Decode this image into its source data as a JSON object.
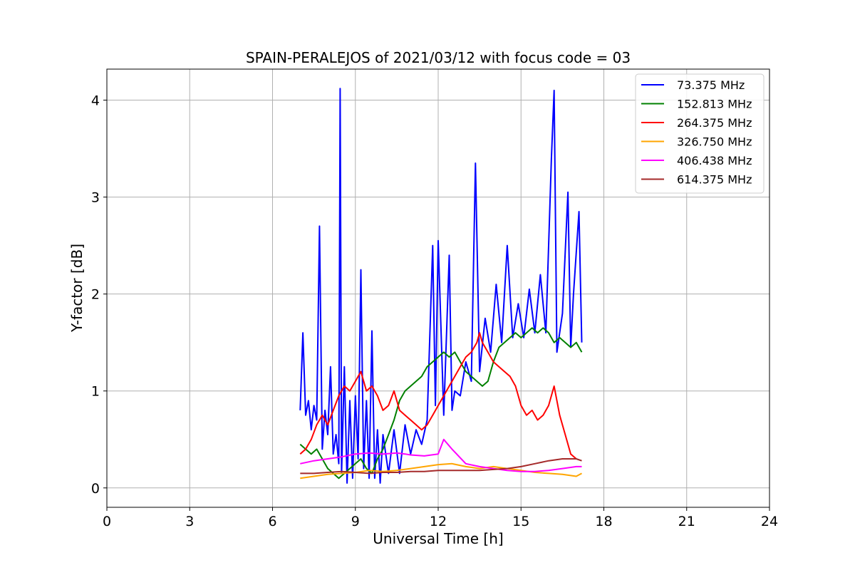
{
  "chart_data": {
    "type": "line",
    "title": "SPAIN-PERALEJOS of 2021/03/12 with focus code = 03",
    "xlabel": "Universal Time [h]",
    "ylabel": "Y-factor [dB]",
    "xlim": [
      0,
      24
    ],
    "ylim": [
      -0.2,
      4.32
    ],
    "xticks": [
      0,
      3,
      6,
      9,
      12,
      15,
      18,
      21,
      24
    ],
    "yticks": [
      0,
      1,
      2,
      3,
      4
    ],
    "grid": true,
    "legend_position": "top-right",
    "series": [
      {
        "name": " 73.375 MHz",
        "color": "#0000ff",
        "x": [
          7.0,
          7.1,
          7.2,
          7.3,
          7.4,
          7.5,
          7.6,
          7.7,
          7.8,
          7.9,
          8.0,
          8.1,
          8.2,
          8.3,
          8.4,
          8.45,
          8.5,
          8.6,
          8.7,
          8.8,
          8.9,
          9.0,
          9.1,
          9.2,
          9.3,
          9.4,
          9.5,
          9.6,
          9.7,
          9.8,
          9.9,
          10.0,
          10.2,
          10.4,
          10.6,
          10.8,
          11.0,
          11.2,
          11.4,
          11.6,
          11.8,
          11.9,
          12.0,
          12.2,
          12.4,
          12.5,
          12.6,
          12.8,
          13.0,
          13.2,
          13.35,
          13.5,
          13.7,
          13.9,
          14.1,
          14.3,
          14.5,
          14.7,
          14.9,
          15.1,
          15.3,
          15.5,
          15.7,
          15.9,
          16.1,
          16.2,
          16.3,
          16.5,
          16.7,
          16.8,
          16.9,
          17.1,
          17.2
        ],
        "y": [
          0.8,
          1.6,
          0.75,
          0.9,
          0.6,
          0.85,
          0.7,
          2.7,
          0.4,
          0.8,
          0.55,
          1.25,
          0.35,
          0.55,
          0.25,
          4.12,
          0.15,
          1.25,
          0.05,
          0.9,
          0.1,
          0.95,
          0.3,
          2.25,
          0.2,
          0.9,
          0.1,
          1.62,
          0.1,
          0.6,
          0.05,
          0.55,
          0.15,
          0.6,
          0.15,
          0.65,
          0.35,
          0.6,
          0.45,
          0.7,
          2.5,
          0.85,
          2.55,
          0.75,
          2.4,
          0.8,
          1.0,
          0.95,
          1.3,
          1.1,
          3.35,
          1.2,
          1.75,
          1.4,
          2.1,
          1.5,
          2.5,
          1.55,
          1.9,
          1.55,
          2.05,
          1.6,
          2.2,
          1.6,
          3.4,
          4.1,
          1.4,
          1.8,
          3.05,
          1.45,
          2.0,
          2.85,
          1.5
        ]
      },
      {
        "name": "152.813 MHz",
        "color": "#008000",
        "x": [
          7.0,
          7.2,
          7.4,
          7.6,
          7.8,
          8.0,
          8.2,
          8.4,
          8.6,
          8.8,
          9.0,
          9.2,
          9.4,
          9.6,
          9.8,
          10.0,
          10.2,
          10.4,
          10.6,
          10.8,
          11.0,
          11.2,
          11.4,
          11.6,
          11.8,
          12.0,
          12.2,
          12.4,
          12.6,
          12.8,
          13.0,
          13.2,
          13.4,
          13.6,
          13.8,
          14.0,
          14.2,
          14.4,
          14.6,
          14.8,
          15.0,
          15.2,
          15.4,
          15.6,
          15.8,
          16.0,
          16.2,
          16.4,
          16.6,
          16.8,
          17.0,
          17.2
        ],
        "y": [
          0.45,
          0.4,
          0.35,
          0.4,
          0.3,
          0.2,
          0.15,
          0.1,
          0.15,
          0.2,
          0.25,
          0.3,
          0.2,
          0.15,
          0.3,
          0.4,
          0.55,
          0.7,
          0.9,
          1.0,
          1.05,
          1.1,
          1.15,
          1.25,
          1.3,
          1.35,
          1.4,
          1.35,
          1.4,
          1.3,
          1.2,
          1.15,
          1.1,
          1.05,
          1.1,
          1.3,
          1.45,
          1.5,
          1.55,
          1.6,
          1.55,
          1.6,
          1.65,
          1.6,
          1.65,
          1.6,
          1.5,
          1.55,
          1.5,
          1.45,
          1.5,
          1.4
        ]
      },
      {
        "name": "264.375 MHz",
        "color": "#ff0000",
        "x": [
          7.0,
          7.2,
          7.4,
          7.6,
          7.8,
          8.0,
          8.2,
          8.4,
          8.6,
          8.8,
          9.0,
          9.2,
          9.4,
          9.6,
          9.8,
          10.0,
          10.2,
          10.4,
          10.6,
          10.8,
          11.0,
          11.2,
          11.4,
          11.6,
          11.8,
          12.0,
          12.2,
          12.4,
          12.6,
          12.8,
          13.0,
          13.2,
          13.4,
          13.5,
          13.6,
          13.8,
          14.0,
          14.2,
          14.4,
          14.6,
          14.8,
          15.0,
          15.2,
          15.4,
          15.6,
          15.8,
          16.0,
          16.2,
          16.4,
          16.6,
          16.8,
          17.0
        ],
        "y": [
          0.35,
          0.4,
          0.5,
          0.65,
          0.75,
          0.65,
          0.8,
          0.95,
          1.05,
          1.0,
          1.1,
          1.2,
          1.0,
          1.05,
          0.95,
          0.8,
          0.85,
          1.0,
          0.8,
          0.75,
          0.7,
          0.65,
          0.6,
          0.65,
          0.75,
          0.85,
          0.95,
          1.05,
          1.15,
          1.25,
          1.35,
          1.4,
          1.5,
          1.6,
          1.5,
          1.4,
          1.3,
          1.25,
          1.2,
          1.15,
          1.05,
          0.85,
          0.75,
          0.8,
          0.7,
          0.75,
          0.85,
          1.05,
          0.75,
          0.55,
          0.35,
          0.3
        ]
      },
      {
        "name": "326.750 MHz",
        "color": "#ffa500",
        "x": [
          7.0,
          7.5,
          8.0,
          8.5,
          9.0,
          9.5,
          10.0,
          10.5,
          11.0,
          11.5,
          12.0,
          12.5,
          13.0,
          13.5,
          14.0,
          14.5,
          15.0,
          15.5,
          16.0,
          16.5,
          17.0,
          17.2
        ],
        "y": [
          0.1,
          0.12,
          0.14,
          0.15,
          0.16,
          0.18,
          0.17,
          0.18,
          0.2,
          0.22,
          0.24,
          0.25,
          0.22,
          0.2,
          0.22,
          0.2,
          0.18,
          0.16,
          0.15,
          0.14,
          0.12,
          0.15
        ]
      },
      {
        "name": "406.438 MHz",
        "color": "#ff00ff",
        "x": [
          7.0,
          7.5,
          8.0,
          8.5,
          9.0,
          9.5,
          10.0,
          10.5,
          10.8,
          11.0,
          11.5,
          12.0,
          12.2,
          12.5,
          13.0,
          13.5,
          14.0,
          14.5,
          15.0,
          15.5,
          16.0,
          16.5,
          17.0,
          17.2
        ],
        "y": [
          0.25,
          0.28,
          0.3,
          0.32,
          0.35,
          0.36,
          0.35,
          0.36,
          0.35,
          0.34,
          0.33,
          0.35,
          0.5,
          0.4,
          0.25,
          0.22,
          0.2,
          0.18,
          0.17,
          0.17,
          0.18,
          0.2,
          0.22,
          0.22
        ]
      },
      {
        "name": "614.375 MHz",
        "color": "#a52a2a",
        "x": [
          7.0,
          7.5,
          8.0,
          8.5,
          9.0,
          9.5,
          10.0,
          10.5,
          11.0,
          11.5,
          12.0,
          12.5,
          13.0,
          13.5,
          14.0,
          14.5,
          15.0,
          15.5,
          16.0,
          16.5,
          17.0,
          17.2
        ],
        "y": [
          0.15,
          0.15,
          0.16,
          0.17,
          0.16,
          0.15,
          0.16,
          0.16,
          0.17,
          0.17,
          0.18,
          0.18,
          0.18,
          0.18,
          0.19,
          0.2,
          0.22,
          0.25,
          0.28,
          0.3,
          0.3,
          0.28
        ]
      }
    ]
  }
}
